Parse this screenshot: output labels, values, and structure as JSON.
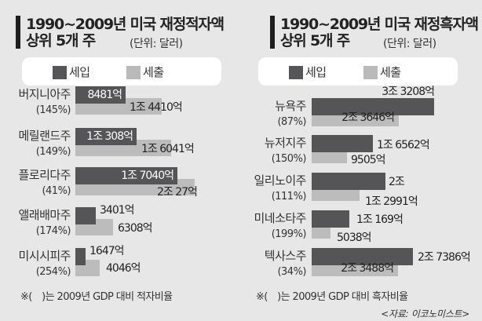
{
  "colors": {
    "income": "#555557",
    "expenditure": "#bcbcbc",
    "background": "#e7e7e7"
  },
  "chart_data": [
    {
      "type": "bar",
      "title": "1990~2009년 미국 재정적자액",
      "subtitle": "상위 5개 주",
      "unit": "(단위: 달러)",
      "legend": [
        "세입",
        "세출"
      ],
      "categories": [
        "버지니아주",
        "메릴랜드주",
        "플로리다주",
        "앨래배마주",
        "미시시피주"
      ],
      "ratios": [
        "(145%)",
        "(149%)",
        "(41%)",
        "(174%)",
        "(254%)"
      ],
      "series": [
        {
          "name": "세입",
          "values": [
            8481,
            10308,
            17040,
            3401,
            1647
          ],
          "labels": [
            "8481억",
            "1조 308억",
            "1조 7040억",
            "3401억",
            "1647억"
          ]
        },
        {
          "name": "세출",
          "values": [
            14410,
            16041,
            20027,
            6308,
            4046
          ],
          "labels": [
            "1조 4410억",
            "1조 6041억",
            "2조 27억",
            "6308억",
            "4046억"
          ]
        }
      ],
      "value_unit": "억 달러",
      "note": "※(　)는 2009년 GDP 대비 적자비율"
    },
    {
      "type": "bar",
      "title": "1990~2009년 미국 재정흑자액",
      "subtitle": "상위 5개 주",
      "unit": "(단위: 달러)",
      "legend": [
        "세입",
        "세출"
      ],
      "categories": [
        "뉴욕주",
        "뉴저지주",
        "일리노이주",
        "미네소타주",
        "텍사스주"
      ],
      "ratios": [
        "(87%)",
        "(150%)",
        "(111%)",
        "(199%)",
        "(34%)"
      ],
      "series": [
        {
          "name": "세입",
          "values": [
            33208,
            16562,
            20000,
            10169,
            27386
          ],
          "labels": [
            "3조 3208억",
            "1조 6562억",
            "2조",
            "1조 169억",
            "2조 7386억"
          ]
        },
        {
          "name": "세출",
          "values": [
            23646,
            9505,
            12991,
            5038,
            23488
          ],
          "labels": [
            "2조 3646억",
            "9505억",
            "1조 2991억",
            "5038억",
            "2조 3488억"
          ]
        }
      ],
      "value_unit": "억 달러",
      "note": "※(　)는 2009년 GDP 대비 흑자비율"
    }
  ],
  "source": "<자료: 이코노미스트>"
}
